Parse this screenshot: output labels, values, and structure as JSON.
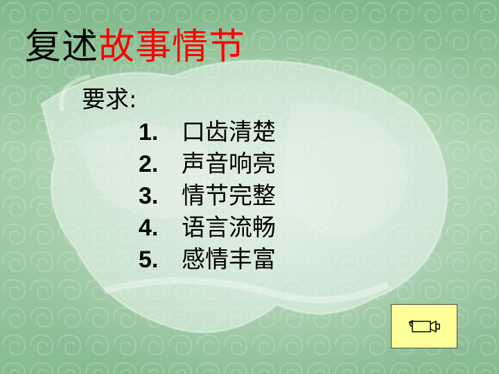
{
  "title": {
    "part_black": "复述",
    "part_red": "故事情节"
  },
  "requirements": {
    "label": "要求:",
    "items": [
      {
        "number": "1.",
        "text": "口齿清楚"
      },
      {
        "number": "2.",
        "text": "声音响亮"
      },
      {
        "number": "3.",
        "text": "情节完整"
      },
      {
        "number": "4.",
        "text": "语言流畅"
      },
      {
        "number": "5.",
        "text": "感情丰富"
      }
    ]
  },
  "action_button": {
    "icon": "movie-camera-icon",
    "fill_color": "#ffff99"
  },
  "colors": {
    "title_black": "#000000",
    "title_red": "#ff0000",
    "background": "#9cc8a3"
  }
}
